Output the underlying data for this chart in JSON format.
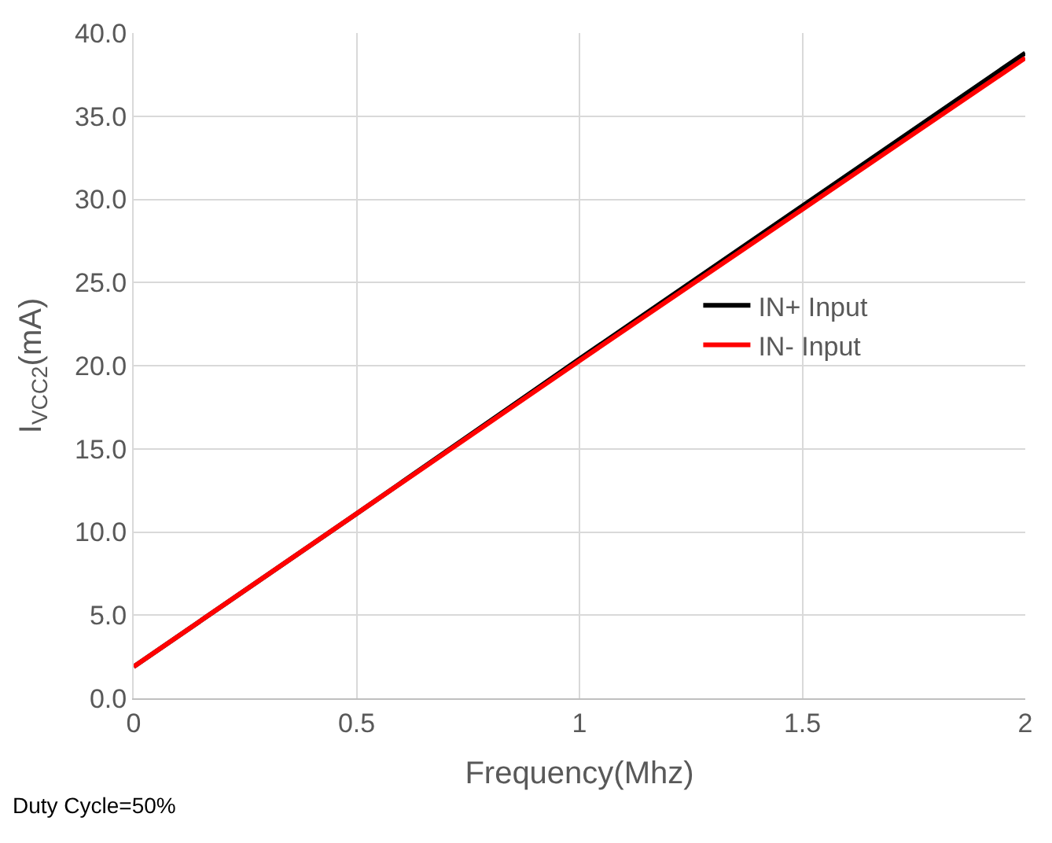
{
  "chart_data": {
    "type": "line",
    "xlabel": "Frequency(Mhz)",
    "ylabel": "I$_{VCC2}$(mA)",
    "x": [
      0,
      0.5,
      1,
      1.5,
      2
    ],
    "series": [
      {
        "name": "IN+ Input",
        "color": "#000000",
        "values": [
          1.9,
          11.1,
          20.4,
          29.6,
          38.8
        ]
      },
      {
        "name": "IN- Input",
        "color": "#ff0000",
        "values": [
          1.9,
          11.1,
          20.3,
          29.4,
          38.5
        ]
      }
    ],
    "xlim": [
      0,
      2
    ],
    "xticks": [
      0,
      0.5,
      1,
      1.5,
      2
    ],
    "ylim": [
      0,
      40
    ],
    "yticks": [
      {
        "value": 0,
        "label": "0.0"
      },
      {
        "value": 5,
        "label": "5.0"
      },
      {
        "value": 10,
        "label": "10.0"
      },
      {
        "value": 15,
        "label": "15.0"
      },
      {
        "value": 20,
        "label": "20.0"
      },
      {
        "value": 25,
        "label": "25.0"
      },
      {
        "value": 30,
        "label": "30.0"
      },
      {
        "value": 35,
        "label": "35.0"
      },
      {
        "value": 40,
        "label": "40.0"
      }
    ],
    "grid": true,
    "legend": "right",
    "marker": "none",
    "line_style": "solid",
    "annotations": [
      "Duty Cycle=50%"
    ]
  }
}
